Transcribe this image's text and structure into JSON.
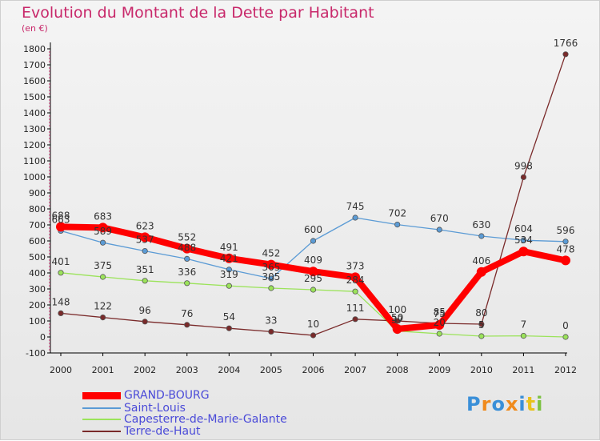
{
  "title": "Evolution du Montant de la Dette par Habitant",
  "subtitle": "(en €)",
  "logo": "Proxiti",
  "colors": {
    "title": "#c8286a",
    "legend_text": "#4a4ad8"
  },
  "chart_data": {
    "type": "line",
    "title": "Evolution du Montant de la Dette par Habitant",
    "subtitle": "(en €)",
    "x": [
      "2000",
      "2001",
      "2002",
      "2003",
      "2004",
      "2005",
      "2006",
      "2007",
      "2008",
      "2009",
      "2010",
      "2011",
      "2012"
    ],
    "ylim": [
      -100,
      1800
    ],
    "yticks": [
      -100,
      0,
      100,
      200,
      300,
      400,
      500,
      600,
      700,
      800,
      900,
      1000,
      1100,
      1200,
      1300,
      1400,
      1500,
      1600,
      1700,
      1800
    ],
    "grid": false,
    "legend_position": "bottom-left",
    "series": [
      {
        "name": "GRAND-BOURG",
        "color": "#ff0000",
        "values": [
          688,
          683,
          623,
          552,
          491,
          452,
          409,
          373,
          50,
          75,
          406,
          534,
          478
        ],
        "labels": [
          "688",
          "683",
          "623",
          "552",
          "491",
          "452",
          "409",
          "373",
          "50",
          "75",
          "406",
          "534",
          "478"
        ]
      },
      {
        "name": "Saint-Louis",
        "color": "#5b9bd5",
        "values": [
          663,
          589,
          537,
          488,
          421,
          365,
          600,
          745,
          702,
          670,
          630,
          604,
          596
        ],
        "labels": [
          "663",
          "589",
          "537",
          "488",
          "421",
          "365",
          "600",
          "745",
          "702",
          "670",
          "630",
          "604",
          "596"
        ]
      },
      {
        "name": "Capesterre-de-Marie-Galante",
        "color": "#9be35a",
        "values": [
          401,
          375,
          351,
          336,
          319,
          305,
          295,
          284,
          37,
          20,
          5,
          7,
          0
        ],
        "labels": [
          "401",
          "375",
          "351",
          "336",
          "319",
          "305",
          "295",
          "284",
          "37",
          "20",
          "5",
          "7",
          "0"
        ]
      },
      {
        "name": "Terre-de-Haut",
        "color": "#7a2a2a",
        "values": [
          148,
          122,
          96,
          76,
          54,
          33,
          10,
          111,
          100,
          85,
          80,
          998,
          1766
        ],
        "labels": [
          "148",
          "122",
          "96",
          "76",
          "54",
          "33",
          "10",
          "111",
          "100",
          "85",
          "80",
          "998",
          "1766"
        ]
      }
    ]
  }
}
